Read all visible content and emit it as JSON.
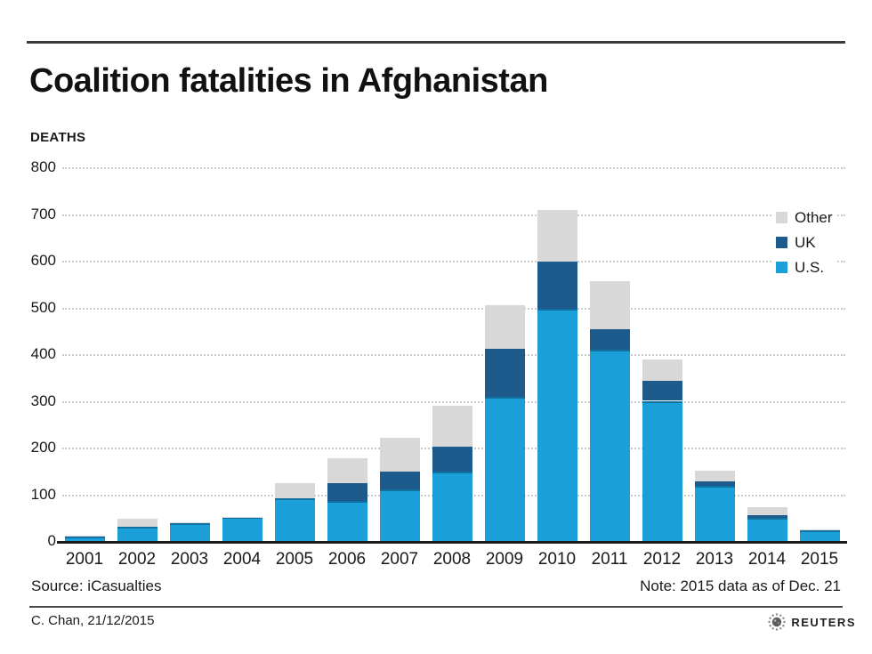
{
  "header": {
    "title": "Coalition fatalities in Afghanistan",
    "units_label": "DEATHS"
  },
  "footer": {
    "source": "Source: iCasualties",
    "note": "Note: 2015 data as of Dec. 21",
    "credit": "C. Chan, 21/12/2015",
    "brand": "REUTERS"
  },
  "colors": {
    "us": "#1b9fd8",
    "uk": "#1e5b8d",
    "other": "#d8d8d8",
    "axis": "#1a1a1a",
    "grid": "#c9c9c9"
  },
  "chart_data": {
    "type": "bar",
    "stacked": true,
    "title": "Coalition fatalities in Afghanistan",
    "ylabel": "DEATHS",
    "xlabel": "",
    "categories": [
      2001,
      2002,
      2003,
      2004,
      2005,
      2006,
      2007,
      2008,
      2009,
      2010,
      2011,
      2012,
      2013,
      2014,
      2015
    ],
    "series": [
      {
        "name": "U.S.",
        "color_key": "us",
        "values": [
          10,
          30,
          38,
          51,
          92,
          86,
          110,
          149,
          309,
          497,
          410,
          300,
          119,
          50,
          23
        ]
      },
      {
        "name": "UK",
        "color_key": "uk",
        "values": [
          0,
          0,
          0,
          0,
          0,
          37,
          38,
          53,
          103,
          101,
          43,
          42,
          8,
          6,
          0
        ]
      },
      {
        "name": "Other",
        "color_key": "other",
        "values": [
          2,
          18,
          2,
          1,
          31,
          54,
          73,
          87,
          93,
          110,
          103,
          47,
          23,
          16,
          2
        ]
      }
    ],
    "totals": [
      12,
      48,
      40,
      52,
      123,
      177,
      221,
      289,
      505,
      708,
      556,
      389,
      150,
      72,
      25
    ],
    "ylim": [
      0,
      800
    ],
    "yticks": [
      0,
      100,
      200,
      300,
      400,
      500,
      600,
      700,
      800
    ],
    "grid": true,
    "legend_position": "top-right",
    "legend_order": [
      "Other",
      "UK",
      "U.S."
    ]
  }
}
